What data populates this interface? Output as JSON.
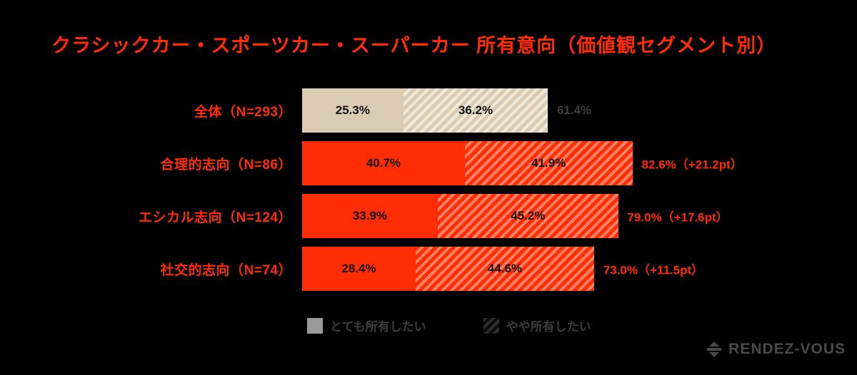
{
  "title": "クラシックカー・スポーツカー・スーパーカー 所有意向（価値観セグメント別）",
  "colors": {
    "background": "#000000",
    "accent_red": "#ff2d05",
    "tan": "#d9ccb2",
    "tan_hatch_light": "#f0ead9",
    "red_hatch_light": "#ff8265",
    "muted_text": "#3f3f3f",
    "legend_swatch_gray": "#9a9a9a"
  },
  "chart_data": {
    "type": "bar",
    "orientation": "horizontal",
    "stacked": true,
    "x_unit": "%",
    "xlim": [
      0,
      100
    ],
    "series_names": [
      "とても所有したい",
      "やや所有したい"
    ],
    "rows": [
      {
        "label": "全体（N=293）",
        "theme": "tan",
        "very": 25.3,
        "very_label": "25.3%",
        "somewhat": 36.2,
        "somewhat_label": "36.2%",
        "total": 61.4,
        "delta": "",
        "total_label": "61.4%"
      },
      {
        "label": "合理的志向（N=86）",
        "theme": "red",
        "very": 40.7,
        "very_label": "40.7%",
        "somewhat": 41.9,
        "somewhat_label": "41.9%",
        "total": 82.6,
        "delta": "+21.2pt",
        "total_label": "82.6%（+21.2pt）"
      },
      {
        "label": "エシカル志向（N=124）",
        "theme": "red",
        "very": 33.9,
        "very_label": "33.9%",
        "somewhat": 45.2,
        "somewhat_label": "45.2%",
        "total": 79.0,
        "delta": "+17.6pt",
        "total_label": "79.0%（+17.6pt）"
      },
      {
        "label": "社交的志向（N=74）",
        "theme": "red",
        "very": 28.4,
        "very_label": "28.4%",
        "somewhat": 44.6,
        "somewhat_label": "44.6%",
        "total": 73.0,
        "delta": "+11.5pt",
        "total_label": "73.0%（+11.5pt）"
      }
    ]
  },
  "legend": {
    "items": [
      {
        "label": "とても所有したい",
        "swatch": "solid-gray"
      },
      {
        "label": "やや所有したい",
        "swatch": "hatched"
      }
    ]
  },
  "brand": {
    "name": "RENDEZ-VOUS",
    "icon": "diamond-logo"
  }
}
